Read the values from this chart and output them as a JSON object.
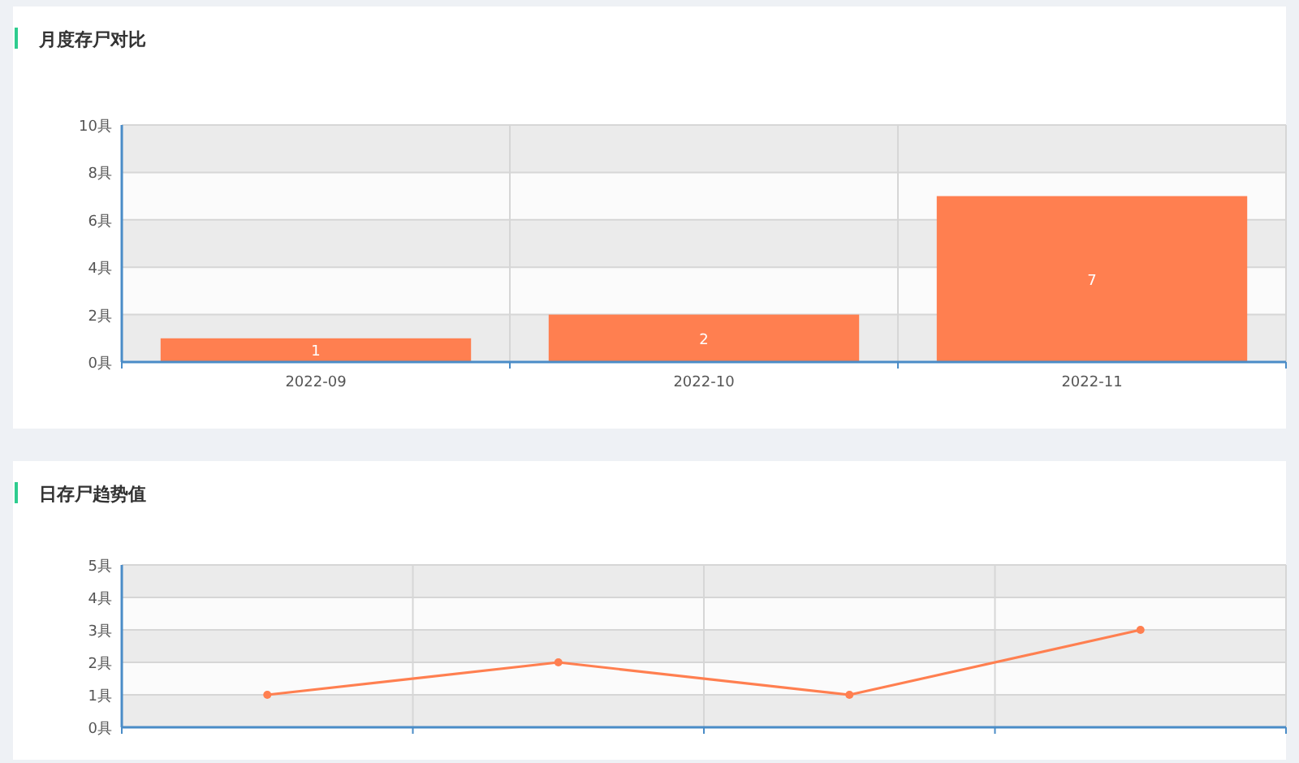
{
  "chart_data": [
    {
      "type": "bar",
      "title": "月度存尸对比",
      "categories": [
        "2022-09",
        "2022-10",
        "2022-11"
      ],
      "values": [
        1,
        2,
        7
      ],
      "color": "#ff7f50",
      "ylim": [
        0,
        10
      ],
      "yticks": [
        {
          "value": 0,
          "label": "0具"
        },
        {
          "value": 2,
          "label": "2具"
        },
        {
          "value": 4,
          "label": "4具"
        },
        {
          "value": 6,
          "label": "6具"
        },
        {
          "value": 8,
          "label": "8具"
        },
        {
          "value": 10,
          "label": "10具"
        }
      ],
      "grid": true,
      "data_labels": true
    },
    {
      "type": "line",
      "title": "日存尸趋势值",
      "categories": [
        null,
        null,
        null,
        null
      ],
      "values": [
        1,
        2,
        1,
        3
      ],
      "color": "#ff7f50",
      "ylim": [
        0,
        5
      ],
      "yticks": [
        {
          "value": 0,
          "label": "0具"
        },
        {
          "value": 1,
          "label": "1具"
        },
        {
          "value": 2,
          "label": "2具"
        },
        {
          "value": 3,
          "label": "3具"
        },
        {
          "value": 4,
          "label": "4具"
        },
        {
          "value": 5,
          "label": "5具"
        }
      ],
      "grid": true,
      "marker": "circle",
      "line_style": "solid"
    }
  ]
}
